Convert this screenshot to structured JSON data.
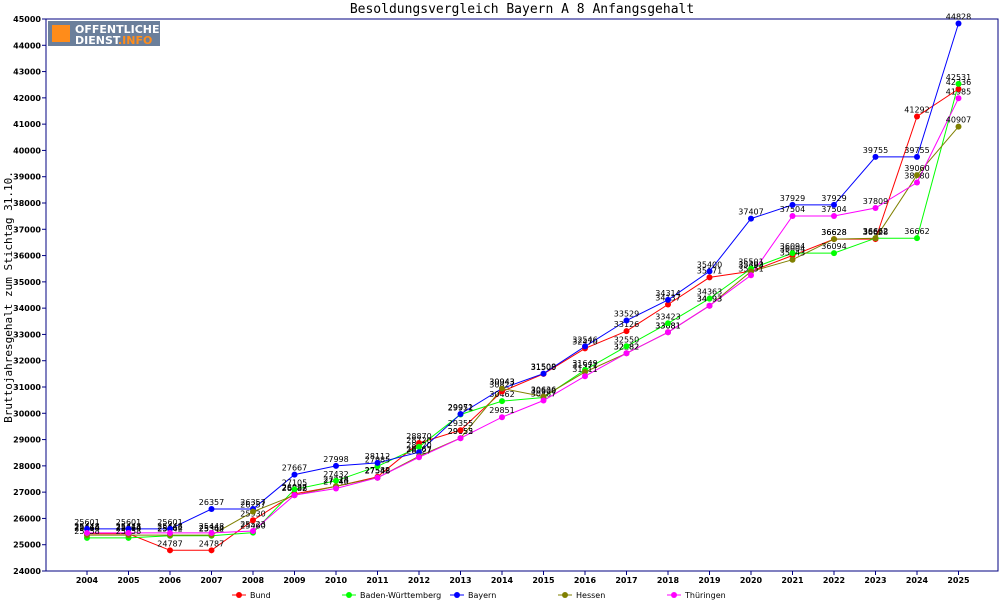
{
  "logo": {
    "line1": "OFFENTLICHER",
    "line2a": "DIENST",
    "line2b": ".INFO"
  },
  "chart_data": {
    "type": "line",
    "title": "Besoldungsvergleich Bayern A 8 Anfangsgehalt",
    "ylabel": "Bruttojahresgehalt zum Stichtag 31.10.",
    "xlabel": "",
    "ylim": [
      24000,
      45000
    ],
    "yticks": [
      24000,
      25000,
      26000,
      27000,
      28000,
      29000,
      30000,
      31000,
      32000,
      33000,
      34000,
      35000,
      36000,
      37000,
      38000,
      39000,
      40000,
      41000,
      42000,
      43000,
      44000,
      45000
    ],
    "categories": [
      "2004",
      "2005",
      "2006",
      "2007",
      "2008",
      "2009",
      "2010",
      "2011",
      "2012",
      "2013",
      "2014",
      "2015",
      "2016",
      "2017",
      "2018",
      "2019",
      "2020",
      "2021",
      "2022",
      "2023",
      "2024",
      "2025"
    ],
    "legend_position": "bottom",
    "grid": false,
    "series": [
      {
        "name": "Bund",
        "color": "#ff0000",
        "values": [
          25414,
          25414,
          24787,
          24787,
          25930,
          26937,
          27218,
          27582,
          28870,
          29355,
          30827,
          31500,
          32470,
          33126,
          34137,
          35171,
          35403,
          36004,
          36628,
          36628,
          41292,
          42336
        ]
      },
      {
        "name": "Baden-Württemberg",
        "color": "#00ff00",
        "values": [
          25258,
          25258,
          25342,
          25342,
          25460,
          27105,
          27432,
          27985,
          28720,
          29952,
          30462,
          30600,
          31649,
          32550,
          33423,
          34363,
          35501,
          36094,
          36094,
          36662,
          36662,
          42531
        ]
      },
      {
        "name": "Bayern",
        "color": "#0000ff",
        "values": [
          25601,
          25601,
          25601,
          26357,
          26357,
          27667,
          27998,
          28112,
          28520,
          29971,
          30943,
          31508,
          32546,
          33529,
          34314,
          35400,
          37407,
          37929,
          37929,
          39755,
          39755,
          44828
        ]
      },
      {
        "name": "Hessen",
        "color": "#808000",
        "values": [
          25364,
          25364,
          25364,
          25364,
          26257,
          26882,
          27224,
          27548,
          28367,
          29055,
          30943,
          30636,
          31571,
          32282,
          33081,
          34093,
          35393,
          35843,
          36628,
          36662,
          39060,
          40907
        ]
      },
      {
        "name": "Thüringen",
        "color": "#ff00ff",
        "values": [
          25448,
          25448,
          25448,
          25448,
          25523,
          26888,
          27140,
          27548,
          28327,
          29052,
          29851,
          30487,
          31411,
          32282,
          33081,
          34093,
          35251,
          37504,
          37504,
          37809,
          38780,
          41985
        ]
      }
    ]
  }
}
